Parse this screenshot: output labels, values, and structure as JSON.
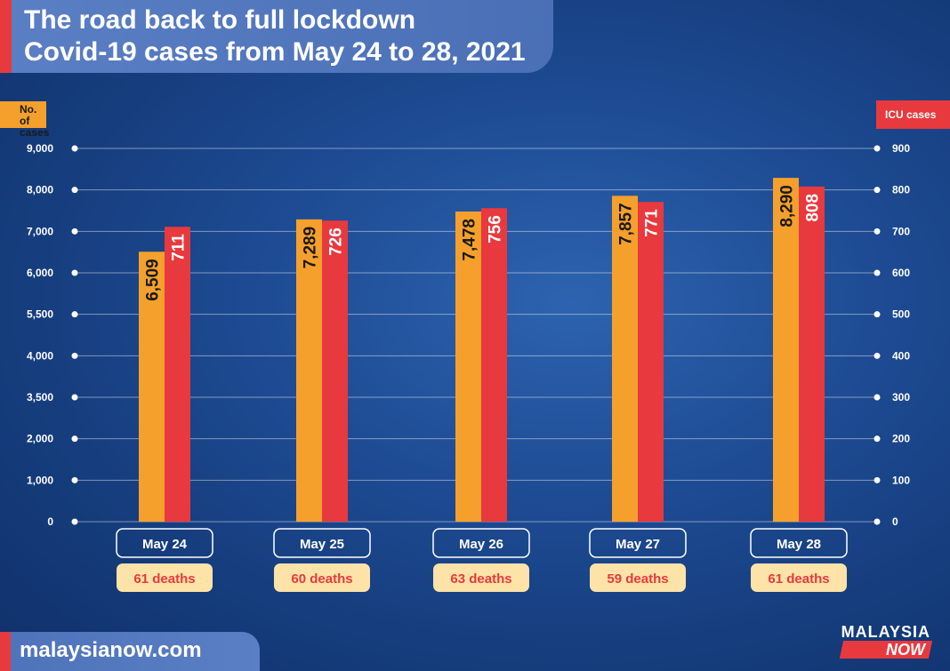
{
  "title": {
    "line1": "The road back to full lockdown",
    "line2": "Covid-19 cases from May 24 to 28, 2021"
  },
  "left_axis_label": "No. of cases",
  "right_axis_label": "ICU cases",
  "footer": "malaysianow.com",
  "logo": {
    "top": "MALAYSIA",
    "bottom": "NOW"
  },
  "colors": {
    "cases": "#f5a02c",
    "icu": "#e8393e",
    "deaths_badge": "#fde3a7",
    "deaths_text": "#e8393e"
  },
  "chart_data": {
    "type": "bar",
    "categories": [
      "May 24",
      "May 25",
      "May 26",
      "May 27",
      "May 28"
    ],
    "series": [
      {
        "values": [
          6509,
          7289,
          7478,
          7857,
          8290
        ],
        "labels": [
          "6,509",
          "7,289",
          "7,478",
          "7,857",
          "8,290"
        ],
        "axis": "left"
      },
      {
        "values": [
          711,
          726,
          756,
          771,
          808
        ],
        "labels": [
          "711",
          "726",
          "756",
          "771",
          "808"
        ],
        "axis": "right"
      }
    ],
    "deaths": [
      "61 deaths",
      "60 deaths",
      "63 deaths",
      "59 deaths",
      "61 deaths"
    ],
    "left_ticks": [
      "0",
      "1,000",
      "2,000",
      "3,500",
      "4,000",
      "5,500",
      "6,000",
      "7,000",
      "8,000",
      "9,000"
    ],
    "right_ticks": [
      "0",
      "100",
      "200",
      "300",
      "400",
      "500",
      "600",
      "700",
      "800",
      "900"
    ],
    "grid": true,
    "legend": "none"
  }
}
